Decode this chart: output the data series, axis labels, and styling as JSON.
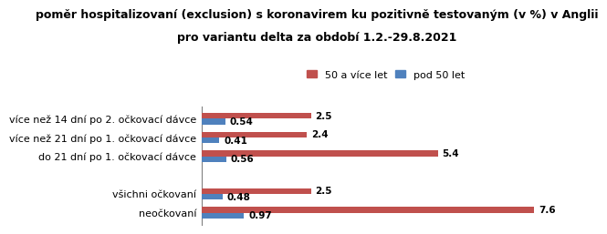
{
  "title_line1": "poměr hospitalizovaní (exclusion) s koronavirem ku pozitivně testovaným (v %) v Anglii",
  "title_line2": "pro variantu delta za období 1.2.-29.8.2021",
  "categories": [
    "neočkovaní",
    "všichni očkovaní",
    "",
    "do 21 dní po 1. očkovací dávce",
    "více než 21 dní po 1. očkovací dávce",
    "více než 14 dní po 2. očkovací dávce"
  ],
  "values_50plus": [
    7.6,
    2.5,
    null,
    5.4,
    2.4,
    2.5
  ],
  "values_under50": [
    0.97,
    0.48,
    null,
    0.56,
    0.41,
    0.54
  ],
  "color_50plus": "#c0504d",
  "color_under50": "#4f81bd",
  "legend_50plus": "50 a více let",
  "legend_under50": "pod 50 let",
  "bar_height": 0.3,
  "xlim": [
    0,
    8.8
  ],
  "background_color": "#ffffff",
  "title_fontsize": 9.0,
  "label_fontsize": 8.0,
  "value_fontsize": 7.5,
  "legend_fontsize": 8.0
}
